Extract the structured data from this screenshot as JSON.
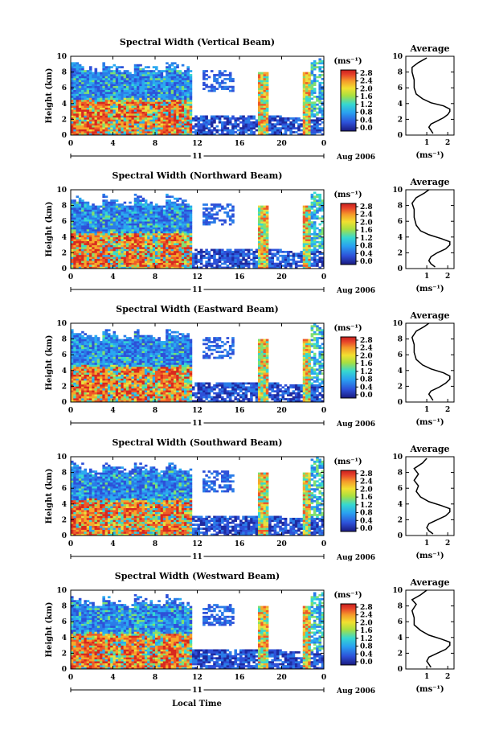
{
  "chart_data": [
    {
      "type": "heatmap",
      "title": "Spectral Width (Vertical Beam)",
      "ylabel": "Height (km)",
      "xticks": [
        "0",
        "4",
        "8",
        "12",
        "16",
        "20",
        "0"
      ],
      "date_label": "11",
      "month_label": "Aug 2006",
      "ylim": [
        0,
        10
      ],
      "yticks": [
        "0",
        "2",
        "4",
        "6",
        "8",
        "10"
      ],
      "colorbar_unit": "(ms⁻¹)",
      "colorbar_ticks": [
        "2.8",
        "2.4",
        "2.0",
        "1.6",
        "1.2",
        "0.8",
        "0.4",
        "0.0"
      ],
      "average": {
        "title": "Average",
        "xlabel": "(ms⁻¹)",
        "xticks": [
          "1",
          "2"
        ],
        "yticks": [
          "0",
          "2",
          "4",
          "6",
          "8",
          "10"
        ],
        "profile": [
          [
            1.3,
            0.2
          ],
          [
            1.2,
            0.6
          ],
          [
            1.1,
            1.0
          ],
          [
            1.2,
            1.4
          ],
          [
            1.5,
            1.8
          ],
          [
            1.8,
            2.2
          ],
          [
            2.0,
            2.6
          ],
          [
            2.1,
            3.0
          ],
          [
            2.1,
            3.3
          ],
          [
            1.8,
            3.7
          ],
          [
            1.2,
            4.1
          ],
          [
            0.8,
            4.6
          ],
          [
            0.5,
            5.2
          ],
          [
            0.4,
            6.0
          ],
          [
            0.4,
            7.0
          ],
          [
            0.3,
            8.0
          ],
          [
            0.3,
            8.6
          ],
          [
            0.6,
            9.2
          ],
          [
            1.0,
            9.8
          ]
        ]
      }
    },
    {
      "type": "heatmap",
      "title": "Spectral Width (Northward Beam)",
      "ylabel": "Height (km)",
      "xticks": [
        "0",
        "4",
        "8",
        "12",
        "16",
        "20",
        "0"
      ],
      "date_label": "11",
      "month_label": "Aug 2006",
      "ylim": [
        0,
        10
      ],
      "yticks": [
        "0",
        "2",
        "4",
        "6",
        "8",
        "10"
      ],
      "colorbar_unit": "(ms⁻¹)",
      "colorbar_ticks": [
        "2.8",
        "2.4",
        "2.0",
        "1.6",
        "1.2",
        "0.8",
        "0.4",
        "0.0"
      ],
      "average": {
        "title": "Average",
        "xlabel": "(ms⁻¹)",
        "xticks": [
          "1",
          "2"
        ],
        "yticks": [
          "0",
          "2",
          "4",
          "6",
          "8",
          "10"
        ],
        "profile": [
          [
            1.4,
            0.2
          ],
          [
            1.2,
            0.6
          ],
          [
            1.1,
            1.0
          ],
          [
            1.2,
            1.5
          ],
          [
            1.5,
            2.0
          ],
          [
            1.9,
            2.5
          ],
          [
            2.1,
            3.0
          ],
          [
            2.1,
            3.4
          ],
          [
            1.7,
            3.8
          ],
          [
            1.1,
            4.3
          ],
          [
            0.7,
            4.8
          ],
          [
            0.5,
            5.5
          ],
          [
            0.4,
            6.5
          ],
          [
            0.4,
            7.5
          ],
          [
            0.3,
            8.3
          ],
          [
            0.5,
            9.0
          ],
          [
            0.9,
            9.6
          ],
          [
            1.1,
            10.0
          ]
        ]
      }
    },
    {
      "type": "heatmap",
      "title": "Spectral Width (Eastward Beam)",
      "ylabel": "Height (km)",
      "xticks": [
        "0",
        "4",
        "8",
        "12",
        "16",
        "20",
        "0"
      ],
      "date_label": "11",
      "month_label": "Aug 2006",
      "ylim": [
        0,
        10
      ],
      "yticks": [
        "0",
        "2",
        "4",
        "6",
        "8",
        "10"
      ],
      "colorbar_unit": "(ms⁻¹)",
      "colorbar_ticks": [
        "2.8",
        "2.4",
        "2.0",
        "1.6",
        "1.2",
        "0.8",
        "0.4",
        "0.0"
      ],
      "average": {
        "title": "Average",
        "xlabel": "(ms⁻¹)",
        "xticks": [
          "1",
          "2"
        ],
        "yticks": [
          "0",
          "2",
          "4",
          "6",
          "8",
          "10"
        ],
        "profile": [
          [
            1.3,
            0.2
          ],
          [
            1.2,
            0.6
          ],
          [
            1.1,
            1.0
          ],
          [
            1.2,
            1.4
          ],
          [
            1.6,
            1.9
          ],
          [
            1.9,
            2.4
          ],
          [
            2.1,
            2.9
          ],
          [
            2.1,
            3.3
          ],
          [
            1.8,
            3.7
          ],
          [
            1.2,
            4.2
          ],
          [
            0.8,
            4.7
          ],
          [
            0.5,
            5.4
          ],
          [
            0.4,
            6.3
          ],
          [
            0.4,
            7.3
          ],
          [
            0.3,
            8.2
          ],
          [
            0.5,
            9.0
          ],
          [
            0.9,
            9.6
          ],
          [
            1.1,
            10.0
          ]
        ]
      }
    },
    {
      "type": "heatmap",
      "title": "Spectral Width (Southward Beam)",
      "ylabel": "Height (km)",
      "xticks": [
        "0",
        "4",
        "8",
        "12",
        "16",
        "20",
        "0"
      ],
      "date_label": "11",
      "month_label": "Aug 2006",
      "ylim": [
        0,
        10
      ],
      "yticks": [
        "0",
        "2",
        "4",
        "6",
        "8",
        "10"
      ],
      "colorbar_unit": "(ms⁻¹)",
      "colorbar_ticks": [
        "2.8",
        "2.4",
        "2.0",
        "1.6",
        "1.2",
        "0.8",
        "0.4",
        "0.0"
      ],
      "average": {
        "title": "Average",
        "xlabel": "(ms⁻¹)",
        "xticks": [
          "1",
          "2"
        ],
        "yticks": [
          "0",
          "2",
          "4",
          "6",
          "8",
          "10"
        ],
        "profile": [
          [
            1.3,
            0.2
          ],
          [
            1.1,
            0.6
          ],
          [
            1.0,
            1.0
          ],
          [
            1.1,
            1.5
          ],
          [
            1.5,
            2.0
          ],
          [
            1.9,
            2.5
          ],
          [
            2.1,
            3.0
          ],
          [
            2.1,
            3.4
          ],
          [
            1.7,
            3.8
          ],
          [
            1.1,
            4.3
          ],
          [
            0.7,
            4.9
          ],
          [
            0.5,
            5.6
          ],
          [
            0.6,
            6.3
          ],
          [
            0.4,
            7.0
          ],
          [
            0.6,
            7.8
          ],
          [
            0.4,
            8.5
          ],
          [
            0.8,
            9.2
          ],
          [
            1.0,
            9.8
          ]
        ]
      }
    },
    {
      "type": "heatmap",
      "title": "Spectral Width (Westward Beam)",
      "ylabel": "Height (km)",
      "xticks": [
        "0",
        "4",
        "8",
        "12",
        "16",
        "20",
        "0"
      ],
      "date_label": "11",
      "month_label": "Aug 2006",
      "xlabel": "Local Time",
      "ylim": [
        0,
        10
      ],
      "yticks": [
        "0",
        "2",
        "4",
        "6",
        "8",
        "10"
      ],
      "colorbar_unit": "(ms⁻¹)",
      "colorbar_ticks": [
        "2.8",
        "2.4",
        "2.0",
        "1.6",
        "1.2",
        "0.8",
        "0.4",
        "0.0"
      ],
      "average": {
        "title": "Average",
        "xlabel": "(ms⁻¹)",
        "xticks": [
          "1",
          "2"
        ],
        "yticks": [
          "0",
          "2",
          "4",
          "6",
          "8",
          "10"
        ],
        "profile": [
          [
            1.2,
            0.2
          ],
          [
            1.1,
            0.6
          ],
          [
            1.0,
            1.0
          ],
          [
            1.1,
            1.5
          ],
          [
            1.5,
            2.0
          ],
          [
            1.9,
            2.5
          ],
          [
            2.1,
            3.0
          ],
          [
            2.1,
            3.4
          ],
          [
            1.7,
            3.8
          ],
          [
            1.1,
            4.3
          ],
          [
            0.7,
            4.9
          ],
          [
            0.4,
            5.6
          ],
          [
            0.4,
            6.5
          ],
          [
            0.3,
            7.4
          ],
          [
            0.5,
            8.2
          ],
          [
            0.3,
            8.8
          ],
          [
            0.7,
            9.4
          ],
          [
            1.0,
            10.0
          ]
        ]
      }
    }
  ]
}
